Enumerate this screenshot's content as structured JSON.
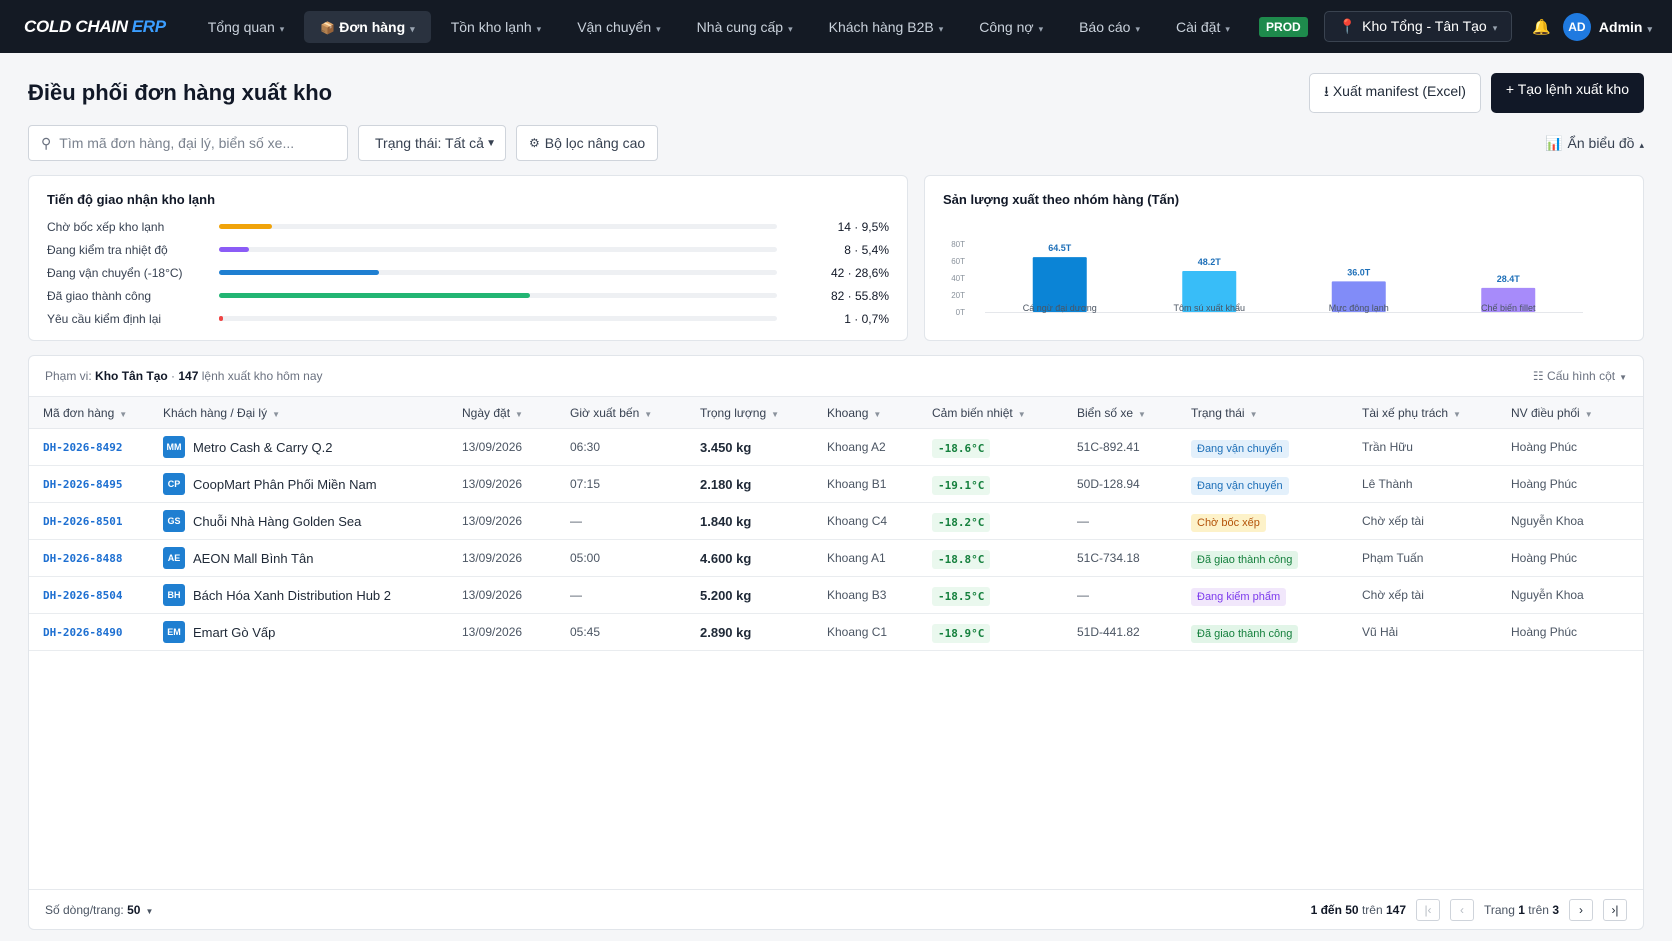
{
  "nav": {
    "logo_main": "COLD CHAIN",
    "logo_accent": "ERP",
    "items": [
      {
        "label": "Tổng quan",
        "active": false
      },
      {
        "label": "Đơn hàng",
        "active": true
      },
      {
        "label": "Tồn kho lạnh",
        "active": false
      },
      {
        "label": "Vận chuyển",
        "active": false
      },
      {
        "label": "Nhà cung cấp",
        "active": false
      },
      {
        "label": "Khách hàng B2B",
        "active": false
      },
      {
        "label": "Công nợ",
        "active": false
      },
      {
        "label": "Báo cáo",
        "active": false
      },
      {
        "label": "Cài đặt",
        "active": false
      }
    ],
    "env_badge": "PROD",
    "warehouse": "Kho Tổng - Tân Tạo",
    "avatar_initials": "AD",
    "user": "Admin"
  },
  "header": {
    "title": "Điều phối đơn hàng xuất kho",
    "export_label": "Xuất manifest (Excel)",
    "create_label": "+ Tạo lệnh xuất kho"
  },
  "filters": {
    "search_placeholder": "Tìm mã đơn hàng, đại lý, biển số xe...",
    "status_label": "Trạng thái: Tất cả",
    "advanced_label": "Bộ lọc nâng cao",
    "hide_chart_label": "Ẩn biểu đồ"
  },
  "progress": {
    "title": "Tiến độ giao nhận kho lạnh",
    "rows": [
      {
        "label": "Chờ bốc xếp kho lạnh",
        "value": "14 · 9,5%",
        "pct": 9.5,
        "color": "#f0a30a"
      },
      {
        "label": "Đang kiểm tra nhiệt độ",
        "value": "8 · 5,4%",
        "pct": 5.4,
        "color": "#8b5cf6"
      },
      {
        "label": "Đang vận chuyển (-18°C)",
        "value": "42 · 28,6%",
        "pct": 28.6,
        "color": "#1f7fd1"
      },
      {
        "label": "Đã giao thành công",
        "value": "82 · 55.8%",
        "pct": 55.8,
        "color": "#22b573"
      },
      {
        "label": "Yêu cầu kiểm định lại",
        "value": "1 · 0,7%",
        "pct": 0.7,
        "color": "#ef4444"
      }
    ]
  },
  "chart_data": {
    "type": "bar",
    "title": "Sản lượng xuất theo nhóm hàng (Tấn)",
    "categories": [
      "Cá ngừ đại dương",
      "Tôm sú xuất khẩu",
      "Mực đông lạnh",
      "Chế biến fillet"
    ],
    "values": [
      64.5,
      48.2,
      36.0,
      28.4
    ],
    "value_labels": [
      "64.5T",
      "48.2T",
      "36.0T",
      "28.4T"
    ],
    "colors": [
      "#0b84d6",
      "#38bdf8",
      "#818cf8",
      "#a78bfa"
    ],
    "yticks": [
      "0T",
      "20T",
      "40T",
      "60T",
      "80T"
    ],
    "ylim": [
      0,
      80
    ]
  },
  "table": {
    "scope_prefix": "Phạm vi:",
    "scope_name": "Kho Tân Tạo",
    "count": "147",
    "scope_suffix": "lệnh xuất kho hôm nay",
    "config_label": "Cấu hình cột",
    "headers": [
      "Mã đơn hàng",
      "Khách hàng / Đại lý",
      "Ngày đặt",
      "Giờ xuất bến",
      "Trọng lượng",
      "Khoang",
      "Cảm biến nhiệt",
      "Biển số xe",
      "Trạng thái",
      "Tài xế phụ trách",
      "NV điều phối"
    ],
    "rows": [
      {
        "id": "DH-2026-8492",
        "ini": "MM",
        "customer": "Metro Cash & Carry Q.2",
        "date": "13/09/2026",
        "time": "06:30",
        "weight": "3.450 kg",
        "bay": "Khoang A2",
        "temp": "-18.6°C",
        "plate": "51C-892.41",
        "status": "Đang vận chuyển",
        "status_type": "ship",
        "driver": "Trần Hữu",
        "dispatcher": "Hoàng Phúc"
      },
      {
        "id": "DH-2026-8495",
        "ini": "CP",
        "customer": "CoopMart Phân Phối Miền Nam",
        "date": "13/09/2026",
        "time": "07:15",
        "weight": "2.180 kg",
        "bay": "Khoang B1",
        "temp": "-19.1°C",
        "plate": "50D-128.94",
        "status": "Đang vận chuyển",
        "status_type": "ship",
        "driver": "Lê Thành",
        "dispatcher": "Hoàng Phúc"
      },
      {
        "id": "DH-2026-8501",
        "ini": "GS",
        "customer": "Chuỗi Nhà Hàng Golden Sea",
        "date": "13/09/2026",
        "time": "—",
        "weight": "1.840 kg",
        "bay": "Khoang C4",
        "temp": "-18.2°C",
        "plate": "—",
        "status": "Chờ bốc xếp",
        "status_type": "wait",
        "driver": "Chờ xếp tài",
        "dispatcher": "Nguyễn Khoa"
      },
      {
        "id": "DH-2026-8488",
        "ini": "AE",
        "customer": "AEON Mall Bình Tân",
        "date": "13/09/2026",
        "time": "05:00",
        "weight": "4.600 kg",
        "bay": "Khoang A1",
        "temp": "-18.8°C",
        "plate": "51C-734.18",
        "status": "Đã giao thành công",
        "status_type": "done",
        "driver": "Phạm Tuấn",
        "dispatcher": "Hoàng Phúc"
      },
      {
        "id": "DH-2026-8504",
        "ini": "BH",
        "customer": "Bách Hóa Xanh Distribution Hub 2",
        "date": "13/09/2026",
        "time": "—",
        "weight": "5.200 kg",
        "bay": "Khoang B3",
        "temp": "-18.5°C",
        "plate": "—",
        "status": "Đang kiểm phẩm",
        "status_type": "check",
        "driver": "Chờ xếp tài",
        "dispatcher": "Nguyễn Khoa"
      },
      {
        "id": "DH-2026-8490",
        "ini": "EM",
        "customer": "Emart Gò Vấp",
        "date": "13/09/2026",
        "time": "05:45",
        "weight": "2.890 kg",
        "bay": "Khoang C1",
        "temp": "-18.9°C",
        "plate": "51D-441.82",
        "status": "Đã giao thành công",
        "status_type": "done",
        "driver": "Vũ Hải",
        "dispatcher": "Hoàng Phúc"
      }
    ],
    "rows_per_page_label": "Số dòng/trang:",
    "rows_per_page": "50",
    "range_text": "1 đến 50",
    "range_of": "trên",
    "range_total": "147",
    "page_word": "Trang",
    "page_current": "1",
    "page_of": "trên",
    "page_total": "3"
  }
}
